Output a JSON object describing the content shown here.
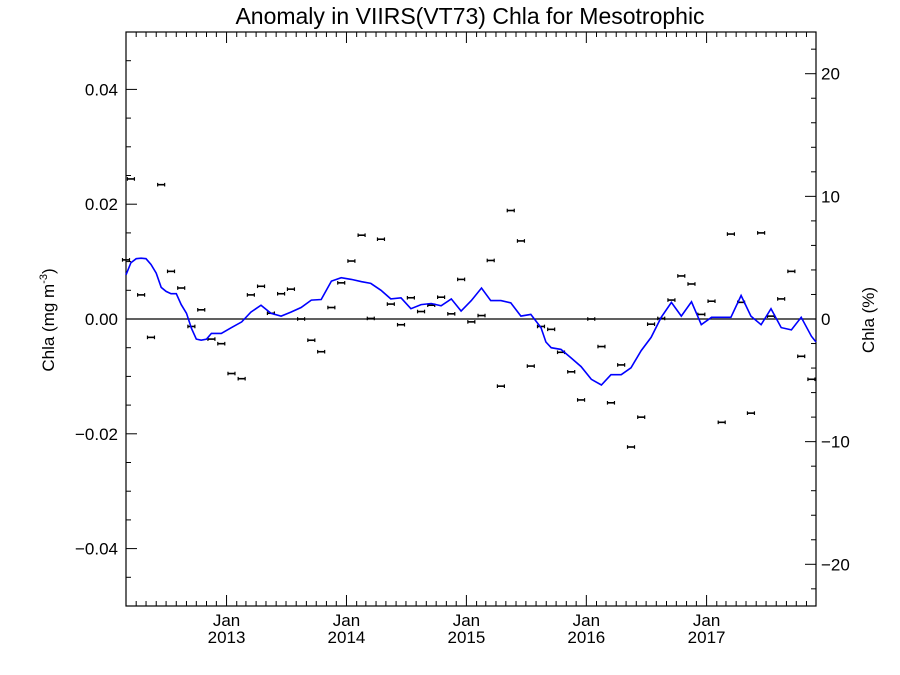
{
  "chart_data": {
    "type": "line",
    "title": "Anomaly in VIIRS(VT73) Chla for Mesotrophic",
    "ylabel_left": "Chla (mg m",
    "ylabel_left_sup": "-3",
    "ylabel_left_end": ")",
    "ylabel_right": "Chla (%)",
    "xlim": [
      "2012-03-01",
      "2017-11-30"
    ],
    "ylim": [
      -0.05,
      0.05
    ],
    "ylim_right": [
      -23.4,
      23.4
    ],
    "x_ticks": [
      {
        "date": "2013-01-01",
        "line1": "Jan",
        "line2": "2013"
      },
      {
        "date": "2014-01-01",
        "line1": "Jan",
        "line2": "2014"
      },
      {
        "date": "2015-01-01",
        "line1": "Jan",
        "line2": "2015"
      },
      {
        "date": "2016-01-01",
        "line1": "Jan",
        "line2": "2016"
      },
      {
        "date": "2017-01-01",
        "line1": "Jan",
        "line2": "2017"
      }
    ],
    "y_ticks_left": [
      {
        "value": 0.04,
        "label": "0.04"
      },
      {
        "value": 0.02,
        "label": "0.02"
      },
      {
        "value": 0.0,
        "label": "0.00"
      },
      {
        "value": -0.02,
        "label": "−0.02"
      },
      {
        "value": -0.04,
        "label": "−0.04"
      }
    ],
    "y_ticks_right": [
      {
        "value": 20,
        "label": "20"
      },
      {
        "value": 10,
        "label": "10"
      },
      {
        "value": 0,
        "label": "0"
      },
      {
        "value": -10,
        "label": "−10"
      },
      {
        "value": -20,
        "label": "−20"
      }
    ],
    "zero_line": true,
    "grid": false,
    "series": [
      {
        "type": "line",
        "color": "#0000ff",
        "points": [
          [
            "2012-03-01",
            0.0077
          ],
          [
            "2012-03-16",
            0.0098
          ],
          [
            "2012-04-01",
            0.0105
          ],
          [
            "2012-04-16",
            0.0106
          ],
          [
            "2012-05-01",
            0.0105
          ],
          [
            "2012-05-16",
            0.0095
          ],
          [
            "2012-06-01",
            0.008
          ],
          [
            "2012-06-16",
            0.0055
          ],
          [
            "2012-07-01",
            0.0048
          ],
          [
            "2012-07-16",
            0.0044
          ],
          [
            "2012-08-01",
            0.0044
          ],
          [
            "2012-08-16",
            0.0025
          ],
          [
            "2012-09-01",
            0.001
          ],
          [
            "2012-09-16",
            -0.0016
          ],
          [
            "2012-10-01",
            -0.0035
          ],
          [
            "2012-10-16",
            -0.0037
          ],
          [
            "2012-11-01",
            -0.0035
          ],
          [
            "2012-11-16",
            -0.0025
          ],
          [
            "2012-12-16",
            -0.0025
          ],
          [
            "2013-01-16",
            -0.0015
          ],
          [
            "2013-02-16",
            -0.0005
          ],
          [
            "2013-03-16",
            0.0012
          ],
          [
            "2013-04-16",
            0.0024
          ],
          [
            "2013-05-16",
            0.001
          ],
          [
            "2013-06-16",
            0.0005
          ],
          [
            "2013-07-16",
            0.0012
          ],
          [
            "2013-08-16",
            0.002
          ],
          [
            "2013-09-16",
            0.0033
          ],
          [
            "2013-10-16",
            0.0034
          ],
          [
            "2013-11-16",
            0.0066
          ],
          [
            "2013-12-16",
            0.0072
          ],
          [
            "2014-01-16",
            0.0069
          ],
          [
            "2014-02-16",
            0.0065
          ],
          [
            "2014-03-16",
            0.0062
          ],
          [
            "2014-04-16",
            0.005
          ],
          [
            "2014-05-16",
            0.0035
          ],
          [
            "2014-06-16",
            0.0037
          ],
          [
            "2014-07-16",
            0.0018
          ],
          [
            "2014-08-16",
            0.0025
          ],
          [
            "2014-09-16",
            0.0027
          ],
          [
            "2014-10-16",
            0.0023
          ],
          [
            "2014-11-16",
            0.0035
          ],
          [
            "2014-12-16",
            0.0014
          ],
          [
            "2015-01-16",
            0.0032
          ],
          [
            "2015-02-16",
            0.0054
          ],
          [
            "2015-03-16",
            0.0032
          ],
          [
            "2015-04-16",
            0.0032
          ],
          [
            "2015-05-16",
            0.0028
          ],
          [
            "2015-06-16",
            0.0005
          ],
          [
            "2015-07-16",
            0.0008
          ],
          [
            "2015-08-16",
            -0.0015
          ],
          [
            "2015-08-31",
            -0.004
          ],
          [
            "2015-09-16",
            -0.005
          ],
          [
            "2015-10-16",
            -0.0053
          ],
          [
            "2015-11-16",
            -0.0068
          ],
          [
            "2015-12-16",
            -0.0083
          ],
          [
            "2016-01-16",
            -0.0105
          ],
          [
            "2016-02-16",
            -0.0115
          ],
          [
            "2016-03-16",
            -0.0097
          ],
          [
            "2016-04-16",
            -0.0097
          ],
          [
            "2016-05-16",
            -0.0085
          ],
          [
            "2016-06-16",
            -0.0055
          ],
          [
            "2016-07-16",
            -0.0032
          ],
          [
            "2016-08-16",
            0.0003
          ],
          [
            "2016-09-16",
            0.0029
          ],
          [
            "2016-10-16",
            0.0005
          ],
          [
            "2016-11-16",
            0.003
          ],
          [
            "2016-12-16",
            -0.001
          ],
          [
            "2017-01-16",
            0.0003
          ],
          [
            "2017-02-16",
            0.0003
          ],
          [
            "2017-03-16",
            0.0003
          ],
          [
            "2017-04-16",
            0.0041
          ],
          [
            "2017-05-16",
            0.0005
          ],
          [
            "2017-06-16",
            -0.001
          ],
          [
            "2017-07-16",
            0.0018
          ],
          [
            "2017-08-16",
            -0.0015
          ],
          [
            "2017-09-16",
            -0.0019
          ],
          [
            "2017-10-16",
            0.0003
          ],
          [
            "2017-11-16",
            -0.003
          ],
          [
            "2017-11-30",
            -0.004
          ]
        ]
      },
      {
        "type": "errorbar",
        "color": "#000000",
        "points": [
          [
            "2012-03-01",
            0.0103
          ],
          [
            "2012-03-16",
            0.0244
          ],
          [
            "2012-04-16",
            0.0042
          ],
          [
            "2012-05-16",
            -0.0032
          ],
          [
            "2012-06-16",
            0.0234
          ],
          [
            "2012-07-16",
            0.0083
          ],
          [
            "2012-08-16",
            0.0054
          ],
          [
            "2012-09-16",
            -0.0013
          ],
          [
            "2012-10-16",
            0.0016
          ],
          [
            "2012-11-16",
            -0.0035
          ],
          [
            "2012-12-16",
            -0.0043
          ],
          [
            "2013-01-16",
            -0.0095
          ],
          [
            "2013-02-16",
            -0.0104
          ],
          [
            "2013-03-16",
            0.0042
          ],
          [
            "2013-04-16",
            0.0057
          ],
          [
            "2013-05-16",
            0.001
          ],
          [
            "2013-06-16",
            0.0044
          ],
          [
            "2013-07-16",
            0.0052
          ],
          [
            "2013-08-16",
            0.0
          ],
          [
            "2013-09-16",
            -0.0037
          ],
          [
            "2013-10-16",
            -0.0057
          ],
          [
            "2013-11-16",
            0.002
          ],
          [
            "2013-12-16",
            0.0063
          ],
          [
            "2014-01-16",
            0.0101
          ],
          [
            "2014-02-16",
            0.0146
          ],
          [
            "2014-03-16",
            0.0001
          ],
          [
            "2014-04-16",
            0.0139
          ],
          [
            "2014-05-16",
            0.0026
          ],
          [
            "2014-06-16",
            -0.001
          ],
          [
            "2014-07-16",
            0.0037
          ],
          [
            "2014-08-16",
            0.0013
          ],
          [
            "2014-09-16",
            0.0024
          ],
          [
            "2014-10-16",
            0.0038
          ],
          [
            "2014-11-16",
            0.0009
          ],
          [
            "2014-12-16",
            0.0069
          ],
          [
            "2015-01-16",
            -0.0005
          ],
          [
            "2015-02-16",
            0.0006
          ],
          [
            "2015-03-16",
            0.0102
          ],
          [
            "2015-04-16",
            -0.0117
          ],
          [
            "2015-05-16",
            0.0189
          ],
          [
            "2015-06-16",
            0.0136
          ],
          [
            "2015-07-16",
            -0.0082
          ],
          [
            "2015-08-16",
            -0.0013
          ],
          [
            "2015-09-16",
            -0.0018
          ],
          [
            "2015-10-16",
            -0.0058
          ],
          [
            "2015-11-16",
            -0.0092
          ],
          [
            "2015-12-16",
            -0.0141
          ],
          [
            "2016-01-16",
            0.0
          ],
          [
            "2016-02-16",
            -0.0048
          ],
          [
            "2016-03-16",
            -0.0146
          ],
          [
            "2016-04-16",
            -0.008
          ],
          [
            "2016-05-16",
            -0.0223
          ],
          [
            "2016-06-16",
            -0.0171
          ],
          [
            "2016-07-16",
            -0.0009
          ],
          [
            "2016-08-16",
            0.0001
          ],
          [
            "2016-09-16",
            0.0033
          ],
          [
            "2016-10-16",
            0.0075
          ],
          [
            "2016-11-16",
            0.0061
          ],
          [
            "2016-12-16",
            0.0008
          ],
          [
            "2017-01-16",
            0.0031
          ],
          [
            "2017-02-16",
            -0.018
          ],
          [
            "2017-03-16",
            0.0148
          ],
          [
            "2017-04-16",
            0.0029
          ],
          [
            "2017-05-16",
            -0.0164
          ],
          [
            "2017-06-16",
            0.015
          ],
          [
            "2017-07-16",
            0.0005
          ],
          [
            "2017-08-16",
            0.0035
          ],
          [
            "2017-09-16",
            0.0083
          ],
          [
            "2017-10-16",
            -0.0065
          ],
          [
            "2017-11-16",
            -0.0105
          ]
        ]
      }
    ]
  }
}
